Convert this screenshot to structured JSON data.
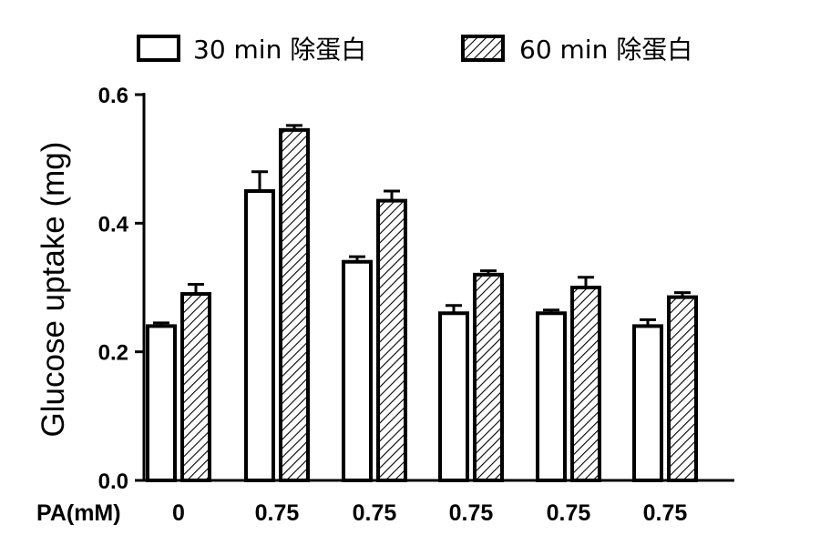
{
  "chart_data": {
    "type": "bar",
    "title": "",
    "ylabel": "Glucose uptake (mg)",
    "xlabel": "",
    "x_prefix_label": "PA(mM)",
    "categories": [
      "0",
      "0.75",
      "0.75",
      "0.75",
      "0.75",
      "0.75"
    ],
    "ylim": [
      0,
      0.6
    ],
    "yticks": [
      {
        "value": 0.0,
        "label": "0.0"
      },
      {
        "value": 0.2,
        "label": "0.2"
      },
      {
        "value": 0.4,
        "label": "0.4"
      },
      {
        "value": 0.6,
        "label": "0.6"
      }
    ],
    "grid": false,
    "legend_position": "top",
    "series": [
      {
        "name": "30 min 除蛋白",
        "pattern": "solid-white",
        "values": [
          0.24,
          0.45,
          0.34,
          0.26,
          0.26,
          0.24
        ],
        "errors": [
          0.005,
          0.03,
          0.008,
          0.012,
          0.005,
          0.01
        ]
      },
      {
        "name": "60 min 除蛋白",
        "pattern": "diagonal-hatch",
        "values": [
          0.29,
          0.545,
          0.435,
          0.32,
          0.3,
          0.285
        ],
        "errors": [
          0.015,
          0.007,
          0.015,
          0.006,
          0.016,
          0.007
        ]
      }
    ]
  }
}
